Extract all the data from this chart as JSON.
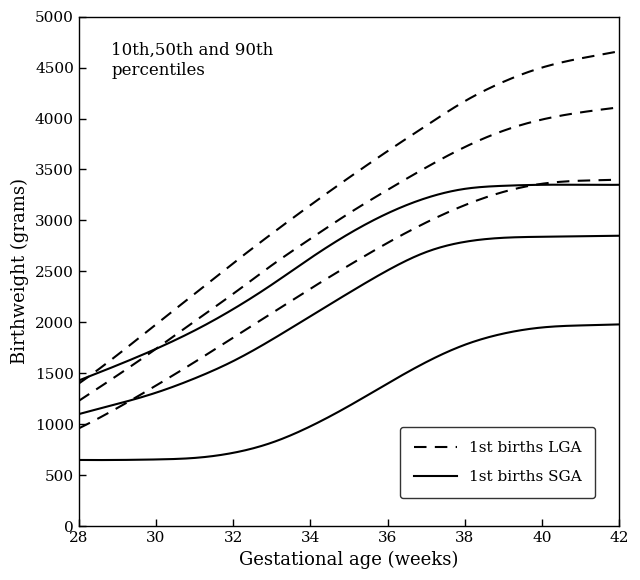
{
  "title": "10th,50th and 90th\npercentiles",
  "xlabel": "Gestational age (weeks)",
  "ylabel": "Birthweight (grams)",
  "xlim": [
    28,
    42
  ],
  "ylim": [
    0,
    5000
  ],
  "xticks": [
    28,
    30,
    32,
    34,
    36,
    38,
    40,
    42
  ],
  "yticks": [
    0,
    500,
    1000,
    1500,
    2000,
    2500,
    3000,
    3500,
    4000,
    4500,
    5000
  ],
  "weeks": [
    28,
    29,
    30,
    31,
    32,
    33,
    34,
    35,
    36,
    37,
    38,
    39,
    40,
    41,
    42
  ],
  "lga_90th": [
    1400,
    1680,
    1980,
    2280,
    2580,
    2870,
    3150,
    3420,
    3680,
    3930,
    4170,
    4360,
    4500,
    4590,
    4660
  ],
  "lga_50th": [
    1230,
    1480,
    1740,
    2010,
    2280,
    2560,
    2820,
    3070,
    3300,
    3520,
    3720,
    3880,
    3990,
    4060,
    4110
  ],
  "lga_10th": [
    960,
    1160,
    1380,
    1610,
    1850,
    2090,
    2330,
    2560,
    2780,
    2980,
    3150,
    3280,
    3360,
    3390,
    3400
  ],
  "sga_90th": [
    1430,
    1580,
    1740,
    1920,
    2130,
    2370,
    2630,
    2870,
    3070,
    3220,
    3310,
    3340,
    3350,
    3350,
    3350
  ],
  "sga_50th": [
    1100,
    1200,
    1310,
    1450,
    1620,
    1830,
    2060,
    2290,
    2510,
    2690,
    2790,
    2830,
    2840,
    2845,
    2850
  ],
  "sga_10th": [
    650,
    650,
    655,
    670,
    720,
    820,
    980,
    1180,
    1400,
    1610,
    1780,
    1890,
    1950,
    1970,
    1980
  ],
  "line_color": "#000000",
  "bg_color": "#ffffff",
  "figsize": [
    6.4,
    5.8
  ],
  "dpi": 100
}
